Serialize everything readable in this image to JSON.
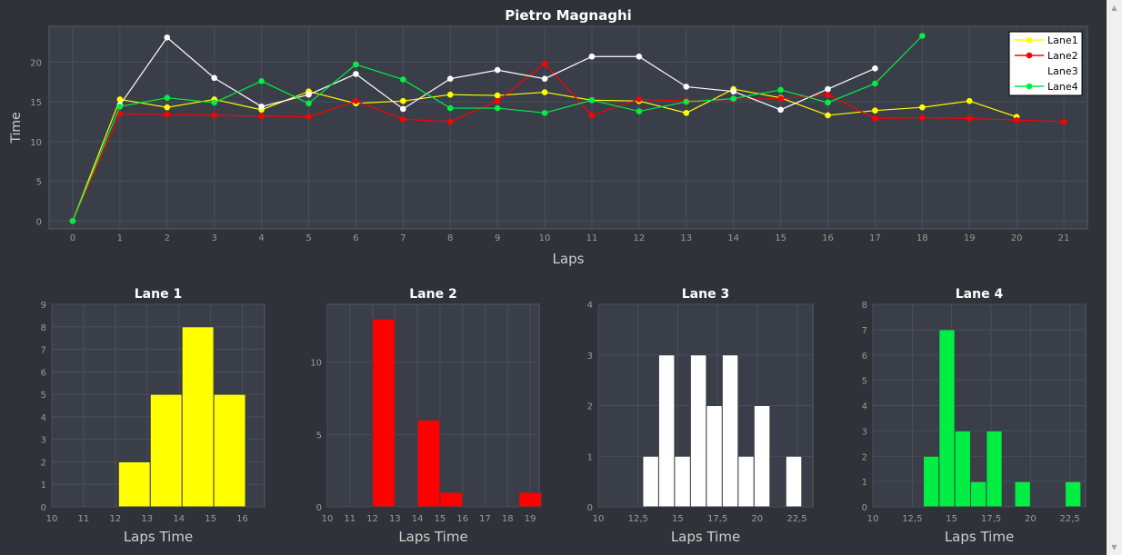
{
  "window": {
    "scroll_up_icon": "chevron-up-icon",
    "scroll_down_icon": "chevron-down-icon"
  },
  "colors": {
    "background": "#2f3238",
    "plot_background": "#3a3e48",
    "grid": "#4a4f5a",
    "lane1": "#ffff00",
    "lane2": "#ff0000",
    "lane3": "#ffffff",
    "lane4": "#00ee44"
  },
  "chart_data": [
    {
      "type": "line",
      "title": "Pietro Magnaghi",
      "xlabel": "Laps",
      "ylabel": "Time",
      "xlim": [
        -0.5,
        21.5
      ],
      "ylim": [
        -1,
        24.5
      ],
      "x_ticks": [
        0,
        1,
        2,
        3,
        4,
        5,
        6,
        7,
        8,
        9,
        10,
        11,
        12,
        13,
        14,
        15,
        16,
        17,
        18,
        19,
        20,
        21
      ],
      "y_ticks": [
        0,
        5,
        10,
        15,
        20
      ],
      "grid": true,
      "legend_position": "top-right",
      "series": [
        {
          "name": "Lane1",
          "color": "#ffff00",
          "x": [
            0,
            1,
            2,
            3,
            4,
            5,
            6,
            7,
            8,
            9,
            10,
            11,
            12,
            13,
            14,
            15,
            16,
            17,
            18,
            19,
            20
          ],
          "y": [
            0,
            15.3,
            14.3,
            15.3,
            14.0,
            16.3,
            14.8,
            15.1,
            15.9,
            15.8,
            16.2,
            15.2,
            15.1,
            13.6,
            16.6,
            15.5,
            13.3,
            13.9,
            14.3,
            15.1,
            13.1
          ]
        },
        {
          "name": "Lane2",
          "color": "#ff0000",
          "x": [
            0,
            1,
            2,
            3,
            4,
            5,
            6,
            7,
            8,
            9,
            10,
            11,
            12,
            13,
            14,
            15,
            16,
            17,
            18,
            19,
            20,
            21
          ],
          "y": [
            0,
            13.5,
            13.4,
            13.3,
            13.2,
            13.1,
            15.1,
            12.8,
            12.5,
            15.1,
            19.8,
            13.3,
            15.3,
            15.1,
            15.3,
            15.4,
            15.9,
            12.9,
            13.0,
            12.9,
            12.7,
            12.5
          ]
        },
        {
          "name": "Lane3",
          "color": "#ffffff",
          "x": [
            1,
            2,
            3,
            4,
            5,
            6,
            7,
            8,
            9,
            10,
            11,
            12,
            13,
            14,
            15,
            16,
            17
          ],
          "y": [
            14.6,
            23.1,
            18.0,
            14.4,
            15.9,
            18.5,
            14.1,
            17.9,
            19.0,
            17.9,
            20.7,
            20.7,
            16.9,
            16.3,
            14.0,
            16.6,
            19.2
          ]
        },
        {
          "name": "Lane4",
          "color": "#00ee44",
          "x": [
            0,
            1,
            2,
            3,
            4,
            5,
            6,
            7,
            8,
            9,
            10,
            11,
            12,
            13,
            14,
            15,
            16,
            17,
            18
          ],
          "y": [
            0,
            14.4,
            15.5,
            14.9,
            17.6,
            14.8,
            19.7,
            17.8,
            14.2,
            14.2,
            13.6,
            15.2,
            13.8,
            15.0,
            15.4,
            16.5,
            14.9,
            17.3,
            23.3
          ]
        }
      ]
    },
    {
      "type": "bar",
      "title": "Lane 1",
      "xlabel": "Laps Time",
      "ylabel": "",
      "color": "#ffff00",
      "xlim": [
        10,
        16.7
      ],
      "ylim": [
        0,
        9
      ],
      "x_ticks": [
        10,
        11,
        12,
        13,
        14,
        15,
        16
      ],
      "y_ticks": [
        0,
        1,
        2,
        3,
        4,
        5,
        6,
        7,
        8,
        9
      ],
      "bins": [
        [
          12.1,
          13.1,
          2
        ],
        [
          13.1,
          14.1,
          5
        ],
        [
          14.1,
          15.1,
          8
        ],
        [
          15.1,
          16.1,
          5
        ]
      ]
    },
    {
      "type": "bar",
      "title": "Lane 2",
      "xlabel": "Laps Time",
      "ylabel": "",
      "color": "#ff0000",
      "xlim": [
        10,
        19.4
      ],
      "ylim": [
        0,
        14
      ],
      "x_ticks": [
        10,
        11,
        12,
        13,
        14,
        15,
        16,
        17,
        18,
        19
      ],
      "y_ticks": [
        0,
        5,
        10
      ],
      "bins": [
        [
          12.0,
          13.0,
          13
        ],
        [
          14.0,
          15.0,
          6
        ],
        [
          15.0,
          16.0,
          1
        ],
        [
          18.5,
          19.5,
          1
        ]
      ]
    },
    {
      "type": "bar",
      "title": "Lane 3",
      "xlabel": "Laps Time",
      "ylabel": "",
      "color": "#ffffff",
      "xlim": [
        10,
        23.5
      ],
      "ylim": [
        0,
        4
      ],
      "x_ticks": [
        "10",
        "12,5",
        "15",
        "17,5",
        "20",
        "22,5"
      ],
      "x_tick_values": [
        10,
        12.5,
        15,
        17.5,
        20,
        22.5
      ],
      "y_ticks": [
        0,
        1,
        2,
        3,
        4
      ],
      "bins": [
        [
          12.8,
          13.8,
          1
        ],
        [
          13.8,
          14.8,
          3
        ],
        [
          14.8,
          15.8,
          1
        ],
        [
          15.8,
          16.8,
          3
        ],
        [
          16.8,
          17.8,
          2
        ],
        [
          17.8,
          18.8,
          3
        ],
        [
          18.8,
          19.8,
          1
        ],
        [
          19.8,
          20.8,
          2
        ],
        [
          21.8,
          22.8,
          1
        ]
      ]
    },
    {
      "type": "bar",
      "title": "Lane 4",
      "xlabel": "Laps Time",
      "ylabel": "",
      "color": "#00ee44",
      "xlim": [
        10,
        23.5
      ],
      "ylim": [
        0,
        8
      ],
      "x_ticks": [
        "10",
        "12,5",
        "15",
        "17,5",
        "20",
        "22,5"
      ],
      "x_tick_values": [
        10,
        12.5,
        15,
        17.5,
        20,
        22.5
      ],
      "y_ticks": [
        0,
        1,
        2,
        3,
        4,
        5,
        6,
        7,
        8
      ],
      "bins": [
        [
          13.2,
          14.2,
          2
        ],
        [
          14.2,
          15.2,
          7
        ],
        [
          15.2,
          16.2,
          3
        ],
        [
          16.2,
          17.2,
          1
        ],
        [
          17.2,
          18.2,
          3
        ],
        [
          19.0,
          20.0,
          1
        ],
        [
          22.2,
          23.2,
          1
        ]
      ]
    }
  ]
}
